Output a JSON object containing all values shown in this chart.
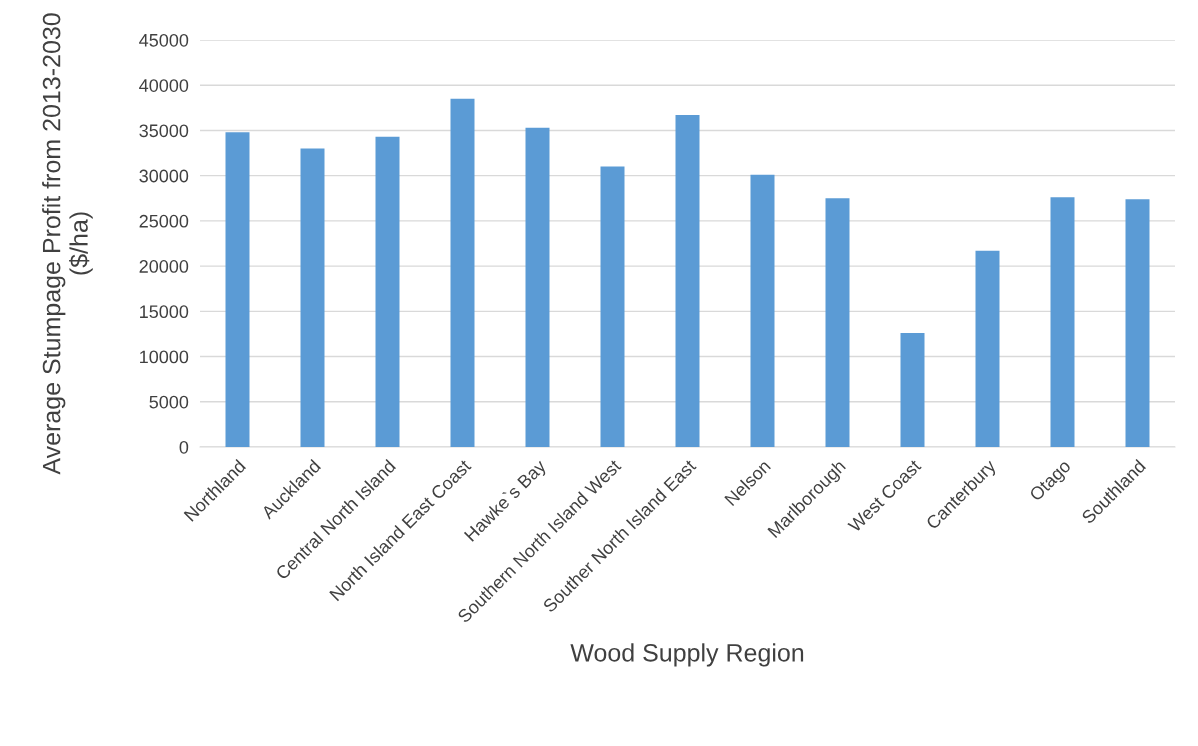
{
  "chart_data": {
    "type": "bar",
    "xlabel": "Wood Supply Region",
    "ylabel": "Average Stumpage Profit from 2013-2030 ($/ha)",
    "categories": [
      "Northland",
      "Auckland",
      "Central North Island",
      "North Island East Coast",
      "Hawke`s Bay",
      "Southern North Island West",
      "Souther North Island East",
      "Nelson",
      "Marlborough",
      "West Coast",
      "Canterbury",
      "Otago",
      "Southland"
    ],
    "values": [
      34800,
      33000,
      34300,
      38500,
      35300,
      31000,
      36700,
      30100,
      27500,
      12600,
      21700,
      27600,
      27400
    ],
    "color": "#5b9bd5",
    "ylim": [
      0,
      45000
    ],
    "yticks": [
      0,
      5000,
      10000,
      15000,
      20000,
      25000,
      30000,
      35000,
      40000,
      45000
    ],
    "grid": "y"
  }
}
